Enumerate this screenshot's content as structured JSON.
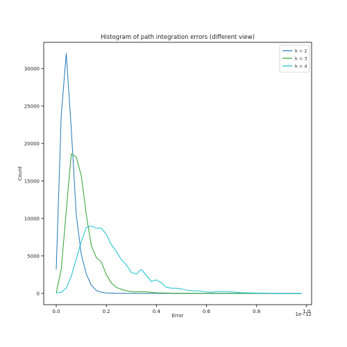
{
  "chart_data": {
    "type": "line",
    "title": "Histogram of path integration errors (different view)",
    "xlabel": "Error",
    "ylabel": "Count",
    "x_offset_label": "1e−12",
    "xlim": [
      -0.05,
      1.02
    ],
    "ylim": [
      -1500,
      33500
    ],
    "x_ticks": [
      0.0,
      0.2,
      0.4,
      0.6,
      0.8,
      1.0
    ],
    "x_tick_labels": [
      "0.0",
      "0.2",
      "0.4",
      "0.6",
      "0.8",
      "1.0"
    ],
    "y_ticks": [
      0,
      5000,
      10000,
      15000,
      20000,
      25000,
      30000
    ],
    "y_tick_labels": [
      "0",
      "5000",
      "10000",
      "15000",
      "20000",
      "25000",
      "30000"
    ],
    "grid": false,
    "legend_position": "top-right",
    "series": [
      {
        "name": "k = 2",
        "color": "#1f77b4",
        "x": [
          0.0,
          0.02,
          0.04,
          0.06,
          0.08,
          0.1,
          0.12,
          0.14,
          0.16,
          0.18,
          0.2,
          0.25,
          0.3,
          0.4,
          0.5,
          0.6,
          0.7,
          0.8,
          0.9,
          0.98
        ],
        "y": [
          3200,
          23800,
          32000,
          22000,
          10500,
          5200,
          2600,
          1100,
          400,
          150,
          60,
          20,
          10,
          5,
          3,
          2,
          1,
          1,
          0,
          0
        ]
      },
      {
        "name": "k = 3",
        "color": "#2ca02c",
        "x": [
          0.0,
          0.02,
          0.04,
          0.06,
          0.08,
          0.1,
          0.12,
          0.14,
          0.16,
          0.18,
          0.2,
          0.22,
          0.24,
          0.26,
          0.28,
          0.3,
          0.32,
          0.34,
          0.36,
          0.38,
          0.4,
          0.45,
          0.5,
          0.6,
          0.7,
          0.8,
          0.9,
          0.98
        ],
        "y": [
          100,
          3200,
          11000,
          18600,
          18200,
          15700,
          10500,
          6400,
          4800,
          4200,
          2500,
          1400,
          800,
          550,
          350,
          250,
          200,
          250,
          200,
          150,
          80,
          40,
          30,
          20,
          15,
          10,
          5,
          5
        ]
      },
      {
        "name": "k = 4",
        "color": "#17becf",
        "x": [
          0.0,
          0.02,
          0.04,
          0.06,
          0.08,
          0.1,
          0.12,
          0.14,
          0.16,
          0.18,
          0.2,
          0.22,
          0.24,
          0.26,
          0.28,
          0.3,
          0.32,
          0.34,
          0.36,
          0.38,
          0.4,
          0.42,
          0.44,
          0.46,
          0.48,
          0.5,
          0.52,
          0.54,
          0.56,
          0.58,
          0.6,
          0.62,
          0.64,
          0.66,
          0.68,
          0.7,
          0.72,
          0.74,
          0.76,
          0.78,
          0.8,
          0.82,
          0.84,
          0.86,
          0.88,
          0.9,
          0.92,
          0.94,
          0.96,
          0.98
        ],
        "y": [
          50,
          150,
          700,
          2300,
          4600,
          6900,
          8800,
          9000,
          8700,
          8700,
          7900,
          6500,
          5600,
          4500,
          3800,
          2800,
          2600,
          3200,
          2400,
          1600,
          1800,
          1400,
          800,
          700,
          700,
          600,
          450,
          350,
          350,
          300,
          200,
          150,
          250,
          250,
          250,
          200,
          150,
          100,
          80,
          60,
          50,
          40,
          40,
          30,
          20,
          20,
          15,
          10,
          10,
          10
        ]
      }
    ]
  }
}
